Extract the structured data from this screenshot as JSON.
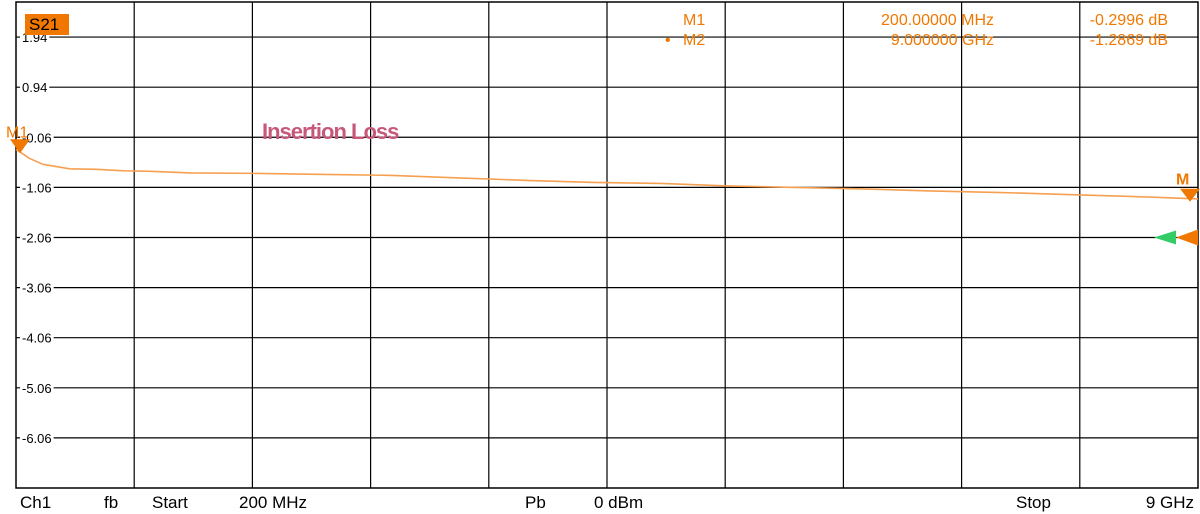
{
  "colors": {
    "trace": "#f5a050",
    "marker": "#f07800",
    "trace_label_bg": "#f07800",
    "annotation": "#c8587a",
    "reference_marker": "#33cc66",
    "grid": "#000000"
  },
  "trace_label": "S21",
  "annotation": "Insertion Loss",
  "marker_readout": [
    {
      "name": "M1",
      "freq": "200.00000 MHz",
      "value": "-0.2996 dB",
      "active": false
    },
    {
      "name": "M2",
      "freq": "9.000000 GHz",
      "value": "-1.2869 dB",
      "active": true
    }
  ],
  "marker_tags": {
    "m1": "M1",
    "m2": "M"
  },
  "footer": {
    "channel": "Ch1",
    "mode": "fb",
    "start_label": "Start",
    "start_value": "200 MHz",
    "power_label": "Pb",
    "power_value": "0 dBm",
    "stop_label": "Stop",
    "stop_value": "9 GHz"
  },
  "chart_data": {
    "type": "line",
    "title": "",
    "xlabel": "",
    "ylabel": "",
    "x_unit": "GHz",
    "xlim": [
      0.2,
      9.0
    ],
    "ylim": [
      -7.06,
      2.64
    ],
    "y_ticks": [
      1.94,
      0.94,
      -0.06,
      -1.06,
      -2.06,
      -3.06,
      -4.06,
      -5.06,
      -6.06
    ],
    "y_tick_labels": [
      "1.94",
      "0.94",
      "-0.06",
      "-1.06",
      "-2.06",
      "-3.06",
      "-4.06",
      "-5.06",
      "-6.06"
    ],
    "x_divisions": 10,
    "grid": true,
    "series": [
      {
        "x": [
          0.2,
          0.3,
          0.4,
          0.6,
          0.8,
          1.0,
          1.2,
          1.5,
          2.0,
          2.5,
          3.0,
          3.5,
          4.0,
          4.5,
          5.0,
          5.5,
          6.0,
          6.5,
          7.0,
          7.5,
          8.0,
          8.5,
          9.0
        ],
        "y": [
          -0.3,
          -0.48,
          -0.6,
          -0.69,
          -0.7,
          -0.73,
          -0.74,
          -0.77,
          -0.78,
          -0.8,
          -0.82,
          -0.87,
          -0.92,
          -0.96,
          -0.98,
          -1.03,
          -1.06,
          -1.09,
          -1.13,
          -1.16,
          -1.2,
          -1.24,
          -1.29
        ]
      }
    ],
    "markers": [
      {
        "name": "M1",
        "x": 0.2,
        "y": -0.2996
      },
      {
        "name": "M2",
        "x": 9.0,
        "y": -1.2869
      }
    ],
    "reference_level": -2.06
  }
}
